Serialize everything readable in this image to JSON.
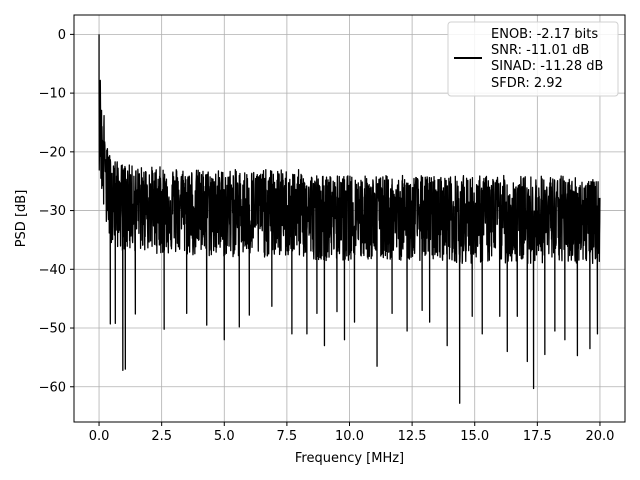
{
  "chart_data": {
    "type": "line",
    "xlabel": "Frequency [MHz]",
    "ylabel": "PSD [dB]",
    "xlim": [
      -1.0,
      21.0
    ],
    "ylim": [
      -66,
      3.3
    ],
    "xticks": [
      0.0,
      2.5,
      5.0,
      7.5,
      10.0,
      12.5,
      15.0,
      17.5,
      20.0
    ],
    "xtick_labels": [
      "0.0",
      "2.5",
      "5.0",
      "7.5",
      "10.0",
      "12.5",
      "15.0",
      "17.5",
      "20.0"
    ],
    "yticks": [
      0,
      -10,
      -20,
      -30,
      -40,
      -50,
      -60
    ],
    "ytick_labels": [
      "0",
      "−10",
      "−20",
      "−30",
      "−40",
      "−50",
      "−60"
    ],
    "grid": true,
    "legend_position": "top-right",
    "legend_lines": [
      "ENOB: -2.17 bits",
      "SNR: -11.01 dB",
      "SINAD: -11.28 dB",
      "SFDR: 2.92"
    ],
    "series": [
      {
        "color": "#000000",
        "x": [
          0.0,
          0.02,
          0.05,
          0.08,
          0.1,
          0.15,
          0.2,
          0.25,
          0.3,
          0.4,
          0.5,
          0.6,
          0.8,
          1.0,
          1.5,
          2.0,
          2.5,
          3.0,
          4.0,
          5.0,
          6.0,
          7.0,
          8.0,
          9.0,
          10.0,
          11.0,
          12.0,
          13.0,
          14.0,
          14.4,
          15.0,
          16.0,
          17.0,
          17.5,
          18.0,
          19.0,
          20.0
        ],
        "y": [
          0.0,
          -16.0,
          -4.0,
          -21.0,
          -10.0,
          -22.0,
          -12.0,
          -24.0,
          -20.0,
          -26.0,
          -27.0,
          -25.0,
          -28.0,
          -27.0,
          -28.0,
          -28.0,
          -28.5,
          -28.5,
          -29.0,
          -29.0,
          -29.5,
          -29.5,
          -30.0,
          -30.0,
          -30.0,
          -30.0,
          -30.5,
          -30.5,
          -30.5,
          -31.0,
          -30.5,
          -30.5,
          -31.0,
          -31.0,
          -31.0,
          -31.0,
          -31.0
        ],
        "noise_band_high": [
          -16,
          -13,
          -17,
          -18,
          -18,
          -18,
          -18.5,
          -19,
          -19,
          -20,
          -21,
          -21,
          -22,
          -22,
          -22.5,
          -22.5,
          -22.5,
          -22.5,
          -23,
          -23,
          -23,
          -23,
          -23,
          -24,
          -24,
          -24,
          -24,
          -24,
          -24,
          -24,
          -24,
          -24,
          -24,
          -24,
          -24,
          -24,
          -25
        ],
        "noise_band_low": [
          -24,
          -22,
          -24,
          -26,
          -28,
          -30,
          -32,
          -33,
          -34,
          -35,
          -35.5,
          -36,
          -36.5,
          -37,
          -37,
          -37,
          -37.5,
          -37.5,
          -38,
          -38,
          -38,
          -38,
          -38,
          -38.5,
          -38.5,
          -38.5,
          -38.5,
          -38.5,
          -38.5,
          -39,
          -39,
          -39,
          -39,
          -39,
          -39,
          -39,
          -39
        ],
        "deep_dips": [
          [
            0.45,
            -49.3
          ],
          [
            0.65,
            -49.2
          ],
          [
            0.95,
            -57.2
          ],
          [
            1.05,
            -57.0
          ],
          [
            1.45,
            -47.6
          ],
          [
            2.6,
            -50.2
          ],
          [
            3.5,
            -47.5
          ],
          [
            4.3,
            -49.5
          ],
          [
            5.0,
            -52.0
          ],
          [
            5.6,
            -49.8
          ],
          [
            6.0,
            -47.8
          ],
          [
            6.9,
            -46.3
          ],
          [
            7.7,
            -51.0
          ],
          [
            8.3,
            -51.0
          ],
          [
            8.7,
            -47.5
          ],
          [
            9.0,
            -53.0
          ],
          [
            9.5,
            -47.2
          ],
          [
            9.8,
            -52.0
          ],
          [
            10.2,
            -49.0
          ],
          [
            11.1,
            -56.5
          ],
          [
            11.7,
            -47.5
          ],
          [
            12.3,
            -50.5
          ],
          [
            12.9,
            -47.0
          ],
          [
            13.2,
            -49.0
          ],
          [
            13.9,
            -53.0
          ],
          [
            14.4,
            -62.8
          ],
          [
            14.9,
            -48.0
          ],
          [
            15.3,
            -51.0
          ],
          [
            16.0,
            -48.0
          ],
          [
            16.3,
            -54.0
          ],
          [
            16.7,
            -48.0
          ],
          [
            17.1,
            -55.7
          ],
          [
            17.35,
            -60.3
          ],
          [
            17.8,
            -54.5
          ],
          [
            18.2,
            -50.5
          ],
          [
            18.6,
            -52.0
          ],
          [
            19.1,
            -54.7
          ],
          [
            19.6,
            -53.5
          ],
          [
            19.9,
            -51.0
          ]
        ]
      }
    ]
  }
}
